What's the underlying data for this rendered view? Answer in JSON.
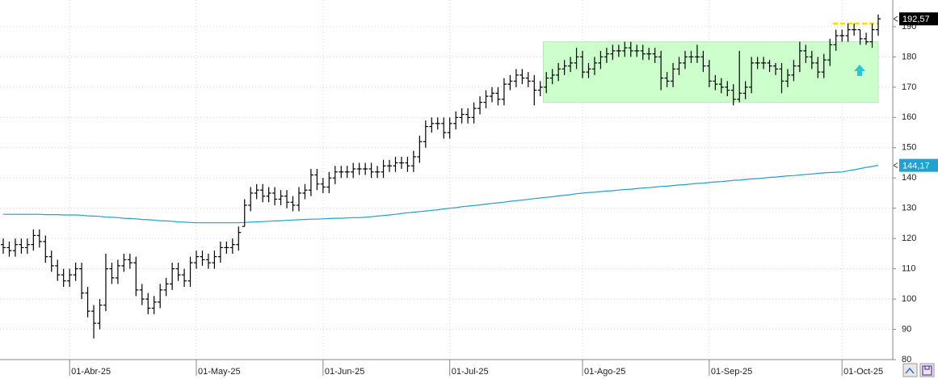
{
  "chart_data": {
    "type": "ohlc",
    "categories": [
      null,
      null,
      null,
      null,
      null,
      null,
      null,
      null,
      null,
      null,
      null,
      "01-Abr-25",
      null,
      null,
      null,
      null,
      null,
      null,
      null,
      null,
      null,
      null,
      null,
      null,
      null,
      null,
      null,
      null,
      null,
      null,
      null,
      null,
      "01-May-25",
      null,
      null,
      null,
      null,
      null,
      null,
      null,
      null,
      null,
      null,
      null,
      null,
      null,
      null,
      null,
      null,
      null,
      null,
      null,
      null,
      "01-Jun-25",
      null,
      null,
      null,
      null,
      null,
      null,
      null,
      null,
      null,
      null,
      null,
      null,
      null,
      null,
      null,
      null,
      null,
      null,
      null,
      null,
      "01-Jul-25",
      null,
      null,
      null,
      null,
      null,
      null,
      null,
      null,
      null,
      null,
      null,
      null,
      null,
      null,
      null,
      null,
      null,
      null,
      null,
      null,
      null,
      "01-Ago-25",
      null,
      null,
      null,
      null,
      null,
      null,
      null,
      null,
      null,
      null,
      null,
      null,
      null,
      null,
      null,
      null,
      null,
      null,
      null,
      null,
      "01-Sep-25",
      null,
      null,
      null,
      null,
      null,
      null,
      null,
      null,
      null,
      null,
      null,
      null,
      null,
      null,
      null,
      null,
      null,
      null,
      null,
      null,
      null,
      "01-Oct-25",
      null,
      null,
      null,
      null,
      null,
      null
    ],
    "open": [
      118,
      117,
      116,
      118,
      117,
      118,
      121,
      119,
      114,
      111,
      108,
      106,
      108,
      110,
      102,
      96,
      92,
      98,
      110,
      107,
      111,
      113,
      112,
      103,
      100,
      97,
      99,
      103,
      105,
      110,
      108,
      106,
      112,
      114,
      113,
      112,
      114,
      117,
      117,
      118,
      124,
      131,
      135,
      136,
      134,
      135,
      133,
      134,
      132,
      131,
      135,
      136,
      141,
      138,
      137,
      140,
      142,
      142,
      142,
      143,
      143,
      143,
      142,
      142,
      144,
      144,
      145,
      145,
      144,
      147,
      152,
      157,
      158,
      158,
      155,
      158,
      160,
      161,
      160,
      163,
      165,
      167,
      168,
      166,
      171,
      172,
      174,
      173,
      172,
      169,
      170,
      173,
      174,
      176,
      177,
      178,
      180,
      175,
      176,
      178,
      180,
      181,
      182,
      182,
      183,
      182,
      182,
      181,
      181,
      180,
      173,
      172,
      176,
      178,
      180,
      180,
      180,
      177,
      172,
      171,
      170,
      169,
      166,
      168,
      170,
      178,
      178,
      178,
      177,
      176,
      172,
      174,
      177,
      182,
      180,
      178,
      175,
      179,
      184,
      187,
      187,
      189,
      189,
      186,
      185,
      189
    ],
    "high": [
      120,
      119,
      120,
      120,
      120,
      123,
      123,
      121,
      116,
      113,
      110,
      110,
      112,
      112,
      104,
      98,
      100,
      115,
      112,
      113,
      115,
      115,
      114,
      105,
      102,
      101,
      105,
      107,
      112,
      112,
      110,
      114,
      116,
      116,
      115,
      116,
      119,
      119,
      120,
      124,
      133,
      137,
      138,
      138,
      137,
      137,
      136,
      136,
      134,
      137,
      138,
      143,
      143,
      140,
      142,
      144,
      144,
      144,
      145,
      145,
      145,
      145,
      144,
      146,
      146,
      147,
      147,
      147,
      149,
      154,
      159,
      160,
      160,
      160,
      160,
      162,
      163,
      163,
      165,
      167,
      169,
      170,
      170,
      173,
      174,
      176,
      176,
      175,
      174,
      172,
      175,
      176,
      178,
      179,
      180,
      183,
      182,
      178,
      180,
      182,
      183,
      184,
      184,
      185,
      185,
      184,
      184,
      183,
      183,
      182,
      175,
      178,
      180,
      182,
      182,
      184,
      182,
      179,
      174,
      173,
      172,
      171,
      182,
      172,
      180,
      180,
      180,
      179,
      178,
      178,
      176,
      179,
      185,
      184,
      182,
      180,
      181,
      186,
      189,
      189,
      191,
      191,
      189,
      188,
      191,
      194
    ],
    "low": [
      115,
      114,
      114,
      115,
      115,
      116,
      117,
      112,
      109,
      106,
      104,
      104,
      106,
      100,
      94,
      87,
      90,
      96,
      105,
      105,
      109,
      110,
      101,
      98,
      95,
      95,
      97,
      101,
      103,
      106,
      104,
      104,
      110,
      111,
      110,
      110,
      112,
      115,
      115,
      116,
      124,
      129,
      133,
      132,
      132,
      131,
      131,
      130,
      129,
      129,
      133,
      134,
      136,
      135,
      135,
      138,
      140,
      140,
      140,
      141,
      141,
      140,
      140,
      140,
      142,
      142,
      143,
      142,
      142,
      145,
      150,
      155,
      156,
      153,
      153,
      156,
      158,
      158,
      158,
      161,
      163,
      165,
      164,
      164,
      169,
      170,
      171,
      170,
      164,
      167,
      168,
      171,
      172,
      174,
      175,
      176,
      173,
      173,
      174,
      176,
      178,
      179,
      180,
      180,
      180,
      180,
      179,
      179,
      178,
      169,
      170,
      170,
      174,
      176,
      178,
      178,
      175,
      170,
      169,
      168,
      167,
      164,
      165,
      166,
      168,
      176,
      176,
      175,
      174,
      168,
      170,
      172,
      175,
      178,
      176,
      173,
      173,
      177,
      182,
      185,
      185,
      187,
      184,
      184,
      183,
      187
    ],
    "close": [
      117,
      116,
      118,
      117,
      118,
      121,
      119,
      114,
      111,
      108,
      106,
      108,
      110,
      102,
      96,
      92,
      98,
      110,
      107,
      111,
      113,
      112,
      103,
      100,
      97,
      99,
      103,
      105,
      110,
      108,
      106,
      112,
      114,
      113,
      112,
      114,
      117,
      117,
      118,
      122,
      131,
      135,
      136,
      134,
      135,
      133,
      134,
      132,
      131,
      135,
      136,
      141,
      138,
      137,
      140,
      142,
      142,
      142,
      143,
      143,
      143,
      142,
      142,
      144,
      144,
      145,
      145,
      144,
      147,
      152,
      157,
      158,
      158,
      155,
      158,
      160,
      161,
      160,
      163,
      165,
      167,
      168,
      166,
      171,
      172,
      174,
      173,
      172,
      169,
      170,
      173,
      174,
      176,
      177,
      178,
      180,
      175,
      176,
      178,
      180,
      181,
      182,
      182,
      183,
      182,
      182,
      181,
      181,
      180,
      173,
      172,
      176,
      178,
      180,
      180,
      180,
      177,
      172,
      171,
      170,
      169,
      166,
      168,
      170,
      178,
      178,
      178,
      177,
      176,
      172,
      174,
      177,
      182,
      180,
      178,
      175,
      179,
      184,
      187,
      187,
      189,
      189,
      186,
      185,
      189,
      192.57
    ],
    "bar_color": "#000000",
    "ma": {
      "color": "#1fa2cf",
      "values": [
        128.0,
        128.0,
        128.0,
        128.0,
        128.0,
        128.0,
        128.0,
        127.9,
        127.9,
        127.9,
        127.8,
        127.8,
        127.8,
        127.7,
        127.5,
        127.4,
        127.3,
        127.1,
        127.0,
        126.9,
        126.7,
        126.6,
        126.5,
        126.3,
        126.2,
        126.1,
        125.9,
        125.8,
        125.7,
        125.5,
        125.4,
        125.3,
        125.2,
        125.2,
        125.2,
        125.2,
        125.2,
        125.2,
        125.2,
        125.2,
        125.3,
        125.4,
        125.5,
        125.6,
        125.7,
        125.8,
        125.9,
        126.0,
        126.1,
        126.2,
        126.3,
        126.4,
        126.4,
        126.5,
        126.6,
        126.7,
        126.7,
        126.8,
        126.9,
        126.9,
        127.0,
        127.2,
        127.4,
        127.6,
        127.8,
        128.0,
        128.3,
        128.5,
        128.7,
        128.9,
        129.1,
        129.3,
        129.5,
        129.8,
        130.0,
        130.2,
        130.5,
        130.7,
        130.9,
        131.1,
        131.4,
        131.6,
        131.8,
        132.0,
        132.3,
        132.5,
        132.7,
        132.9,
        133.2,
        133.4,
        133.6,
        133.8,
        134.1,
        134.3,
        134.5,
        134.8,
        135.0,
        135.2,
        135.3,
        135.5,
        135.7,
        135.8,
        136.0,
        136.2,
        136.3,
        136.5,
        136.7,
        136.8,
        137.0,
        137.2,
        137.3,
        137.5,
        137.7,
        137.8,
        138.0,
        138.2,
        138.3,
        138.5,
        138.7,
        138.8,
        139.0,
        139.2,
        139.3,
        139.5,
        139.7,
        139.8,
        140.0,
        140.2,
        140.3,
        140.5,
        140.7,
        140.8,
        141.0,
        141.2,
        141.3,
        141.5,
        141.7,
        141.8,
        141.9,
        142.0,
        142.4,
        142.7,
        143.1,
        143.5,
        143.8,
        144.17
      ]
    },
    "last_price": {
      "value": 192.57,
      "label": "192,57"
    },
    "ma_last": {
      "value": 144.17,
      "label": "144,17"
    },
    "range_box": {
      "low": 165,
      "high": 185,
      "color": "#ccffcc"
    },
    "resistance": {
      "value": 191,
      "color": "#f5e000"
    },
    "ylim": [
      80,
      198.8
    ],
    "yticks": [
      80,
      90,
      100,
      110,
      120,
      130,
      140,
      150,
      160,
      170,
      180,
      190
    ],
    "grid": true
  }
}
